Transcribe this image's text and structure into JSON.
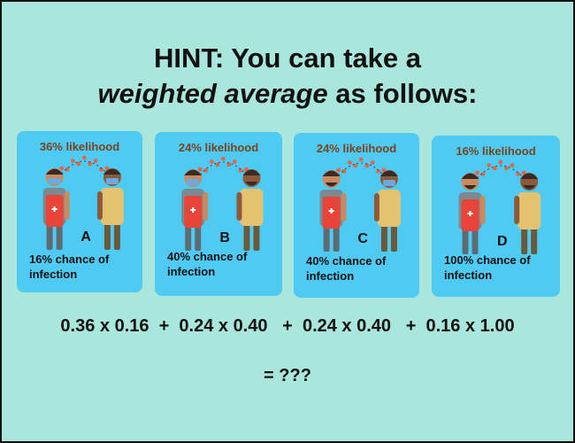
{
  "title": {
    "line1": "HINT: You can take a",
    "line2_emph": "weighted average",
    "line2_rest": " as follows:"
  },
  "cards": [
    {
      "likelihood": "36% likelihood",
      "letter": "A",
      "chance": "16% chance of infection",
      "mask_left": true,
      "mask_right": true
    },
    {
      "likelihood": "24% likelihood",
      "letter": "B",
      "chance": "40% chance of infection",
      "mask_left": true,
      "mask_right": false
    },
    {
      "likelihood": "24% likelihood",
      "letter": "C",
      "chance": "40% chance of infection",
      "mask_left": false,
      "mask_right": true
    },
    {
      "likelihood": "16% likelihood",
      "letter": "D",
      "chance": "100% chance of infection",
      "mask_left": false,
      "mask_right": false
    }
  ],
  "equation": "0.36 x 0.16  +  0.24 x 0.40   +  0.24 x 0.40   +  0.16 x 1.00",
  "result": "= ???",
  "colors": {
    "background": "#a9e6dc",
    "card": "#4fcaf3",
    "likelihood_text": "#7a4420",
    "droplets": "#e0674a"
  }
}
